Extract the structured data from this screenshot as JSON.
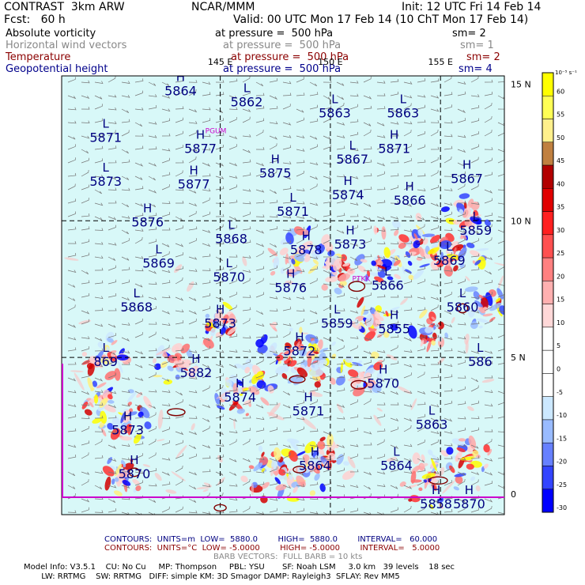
{
  "header": {
    "line1_left": "CONTRAST  3km ARW",
    "line1_center": "NCAR/MMM",
    "line1_right": "Init: 12 UTC Fri 14 Feb 14",
    "line2_left": "Fcst:   60 h",
    "line2_right": "Valid: 00 UTC Mon 17 Feb 14 (10 ChT Mon 17 Feb 14)"
  },
  "fields": [
    {
      "name": "Absolute vorticity",
      "level": "at pressure =  500 hPa",
      "sm": "sm= 2",
      "color": "#000000"
    },
    {
      "name": "Horizontal wind vectors",
      "level": "at pressure =  500 hPa",
      "sm": "sm= 1",
      "color": "#888888"
    },
    {
      "name": "Temperature",
      "level": "at pressure =  500 hPa",
      "sm": "sm= 2",
      "color": "#8b0000"
    },
    {
      "name": "Geopotential height",
      "level": "at pressure =  500 hPa",
      "sm": "sm= 4",
      "color": "#00008b"
    }
  ],
  "chart_data": {
    "type": "map",
    "x_ticks": [
      "145 E",
      "150 E",
      "155 E"
    ],
    "y_ticks": [
      "15 N",
      "10 N",
      "5 N",
      "0"
    ],
    "stations": [
      "PGUM",
      "PTKK"
    ],
    "colorbar": {
      "unit": "10⁻⁵ s⁻¹",
      "levels": [
        60,
        55,
        50,
        45,
        40,
        35,
        30,
        25,
        20,
        15,
        10,
        5,
        0,
        -5,
        -10,
        -15,
        -20,
        -25,
        -30
      ],
      "colors": [
        "#ffff00",
        "#ffff55",
        "#fff08c",
        "#c08040",
        "#b20000",
        "#e00000",
        "#ff2020",
        "#ff5050",
        "#ff8080",
        "#ffb0b0",
        "#ffd8d8",
        "#ffffff",
        "#ffffff",
        "#ffffff",
        "#cce8ff",
        "#99bbff",
        "#6680ff",
        "#3344ff",
        "#0000ff"
      ]
    },
    "height_labels": [
      {
        "t": "H",
        "v": "5864",
        "lon": 143.2,
        "lat": 14.7
      },
      {
        "t": "L",
        "v": "5862",
        "lon": 146.2,
        "lat": 14.3
      },
      {
        "t": "L",
        "v": "5863",
        "lon": 150.2,
        "lat": 13.9
      },
      {
        "t": "L",
        "v": "5863",
        "lon": 153.3,
        "lat": 13.9
      },
      {
        "t": "L",
        "v": "5871",
        "lon": 139.8,
        "lat": 13.0
      },
      {
        "t": "H",
        "v": "5877",
        "lon": 144.1,
        "lat": 12.6
      },
      {
        "t": "H",
        "v": "5871",
        "lon": 152.9,
        "lat": 12.6
      },
      {
        "t": "H",
        "v": "5875",
        "lon": 147.5,
        "lat": 11.7
      },
      {
        "t": "L",
        "v": "5867",
        "lon": 151.0,
        "lat": 12.2
      },
      {
        "t": "H",
        "v": "5867",
        "lon": 156.2,
        "lat": 11.5
      },
      {
        "t": "L",
        "v": "5873",
        "lon": 139.8,
        "lat": 11.4
      },
      {
        "t": "H",
        "v": "5877",
        "lon": 143.8,
        "lat": 11.3
      },
      {
        "t": "H",
        "v": "5874",
        "lon": 150.8,
        "lat": 10.9
      },
      {
        "t": "H",
        "v": "5866",
        "lon": 153.6,
        "lat": 10.7
      },
      {
        "t": "L",
        "v": "5871",
        "lon": 148.3,
        "lat": 10.3
      },
      {
        "t": "H",
        "v": "5876",
        "lon": 141.7,
        "lat": 9.9
      },
      {
        "t": "L",
        "v": "5868",
        "lon": 145.5,
        "lat": 9.3
      },
      {
        "t": "L",
        "v": "5859",
        "lon": 156.6,
        "lat": 9.6
      },
      {
        "t": "H",
        "v": "5878",
        "lon": 148.9,
        "lat": 8.9
      },
      {
        "t": "H",
        "v": "5873",
        "lon": 150.9,
        "lat": 9.1
      },
      {
        "t": "L",
        "v": "5869",
        "lon": 142.2,
        "lat": 8.4
      },
      {
        "t": "L",
        "v": "5869",
        "lon": 155.4,
        "lat": 8.5
      },
      {
        "t": "L",
        "v": "5870",
        "lon": 145.4,
        "lat": 7.9
      },
      {
        "t": "H",
        "v": "5876",
        "lon": 148.2,
        "lat": 7.5
      },
      {
        "t": "L",
        "v": "5866",
        "lon": 152.6,
        "lat": 7.6
      },
      {
        "t": "L",
        "v": "5868",
        "lon": 141.2,
        "lat": 6.8
      },
      {
        "t": "L",
        "v": "5860",
        "lon": 156.0,
        "lat": 6.8
      },
      {
        "t": "H",
        "v": "5873",
        "lon": 145.0,
        "lat": 6.2
      },
      {
        "t": "L",
        "v": "5859",
        "lon": 150.3,
        "lat": 6.2
      },
      {
        "t": "H",
        "v": "5855",
        "lon": 152.9,
        "lat": 6.0
      },
      {
        "t": "L",
        "v": "869",
        "lon": 139.8,
        "lat": 4.8
      },
      {
        "t": "H",
        "v": "5872",
        "lon": 148.6,
        "lat": 5.2
      },
      {
        "t": "H",
        "v": "5882",
        "lon": 143.9,
        "lat": 4.4
      },
      {
        "t": "L",
        "v": "586",
        "lon": 156.8,
        "lat": 4.8
      },
      {
        "t": "H",
        "v": "5870",
        "lon": 152.4,
        "lat": 4.0
      },
      {
        "t": "H",
        "v": "5874",
        "lon": 145.9,
        "lat": 3.5
      },
      {
        "t": "H",
        "v": "5871",
        "lon": 149.0,
        "lat": 3.0
      },
      {
        "t": "L",
        "v": "5863",
        "lon": 154.6,
        "lat": 2.5
      },
      {
        "t": "H",
        "v": "5873",
        "lon": 140.8,
        "lat": 2.3
      },
      {
        "t": "H",
        "v": "5870",
        "lon": 141.1,
        "lat": 0.7
      },
      {
        "t": "H",
        "v": "5864",
        "lon": 149.3,
        "lat": 1.0
      },
      {
        "t": "L",
        "v": "5864",
        "lon": 153.0,
        "lat": 1.0
      },
      {
        "t": "H",
        "v": "5858",
        "lon": 154.8,
        "lat": -0.4
      },
      {
        "t": "H",
        "v": "5870",
        "lon": 156.3,
        "lat": -0.4
      }
    ]
  },
  "footer": {
    "contours1": "CONTOURS:  UNITS=m  LOW=  5880.0        HIGH=  5880.0        INTERVAL=   60.000",
    "contours2": "CONTOURS:  UNITS=°C  LOW= -5.0000        HIGH= -5.0000        INTERVAL=   5.0000",
    "barbs": "BARB VECTORS:  FULL BARB = 10 kts",
    "model1": "Model Info: V3.5.1    CU: No Cu     MP: Thompson     PBL: YSU       SF: Noah LSM     3.0 km   39 levels    18 sec",
    "model2": "       LW: RRTMG    SW: RRTMG   DIFF: simple KM: 3D Smagor DAMP: Rayleigh3  SFLAY: Rev MM5"
  }
}
